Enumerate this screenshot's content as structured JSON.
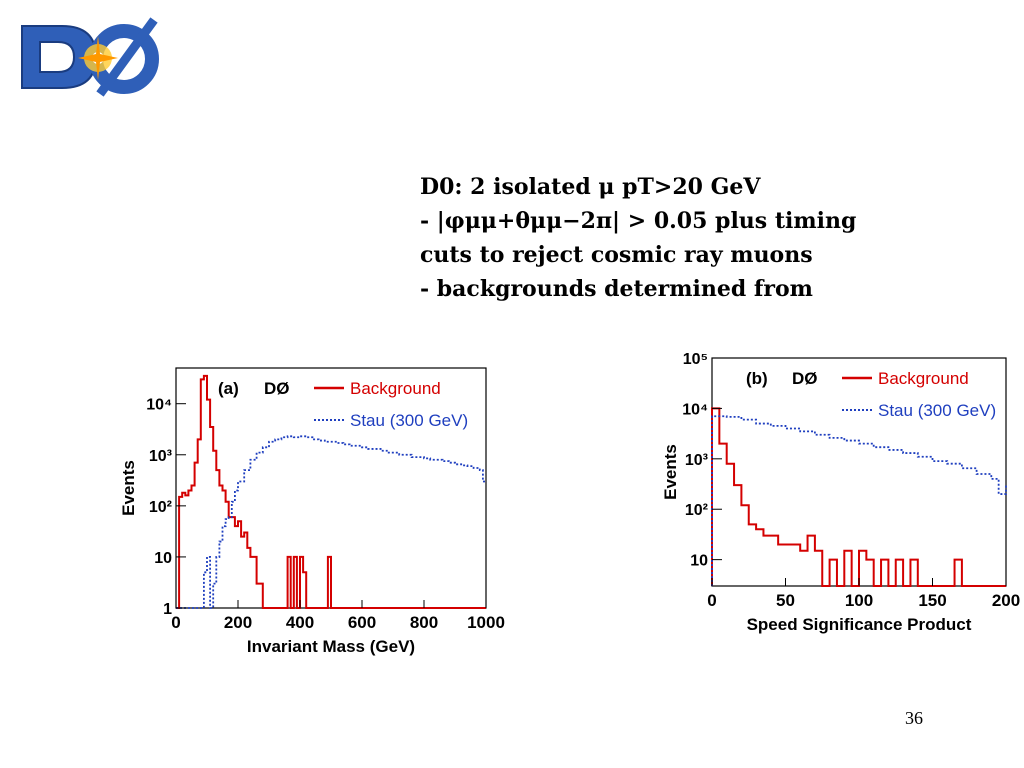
{
  "slide": {
    "lines": [
      "D0: 2 isolated μ pT>20 GeV",
      "- |φμμ+θμμ−2π| > 0.05 plus timing",
      "cuts to reject cosmic ray muons",
      "- backgrounds determined from"
    ],
    "page_number": "36",
    "logo_text": "DØ"
  },
  "colors": {
    "background": "#d40000",
    "stau": "#1f3fbf",
    "logo_blue": "#2f5fb8"
  },
  "chart_data": [
    {
      "type": "line",
      "panel_label": "(a)",
      "experiment_label": "DØ",
      "xlabel": "Invariant Mass (GeV)",
      "ylabel": "Events",
      "xlim": [
        0,
        1000
      ],
      "ylim": [
        1,
        50000
      ],
      "yscale": "log",
      "xticks": [
        0,
        200,
        400,
        600,
        800,
        1000
      ],
      "xtick_labels": [
        "0",
        "200",
        "400",
        "600",
        "800",
        "1000"
      ],
      "yticks": [
        1,
        10,
        100,
        1000,
        10000
      ],
      "ytick_labels": [
        "1",
        "10",
        "10²",
        "10³",
        "10⁴"
      ],
      "legend_position": "top-right",
      "series": [
        {
          "name": "Background",
          "style": "histogram",
          "x": [
            0,
            10,
            20,
            30,
            40,
            50,
            60,
            70,
            80,
            90,
            100,
            110,
            120,
            130,
            140,
            150,
            160,
            170,
            180,
            190,
            200,
            210,
            220,
            230,
            240,
            250,
            260,
            270,
            280,
            290,
            300,
            310,
            320,
            330,
            340,
            350,
            360,
            370,
            380,
            390,
            400,
            410,
            420,
            430,
            440,
            450,
            460,
            470,
            480,
            490,
            500
          ],
          "y": [
            1,
            150,
            180,
            160,
            200,
            250,
            700,
            2000,
            30000,
            35000,
            12000,
            3500,
            1200,
            500,
            250,
            200,
            120,
            60,
            60,
            40,
            50,
            25,
            30,
            15,
            10,
            10,
            3,
            3,
            1,
            1,
            1,
            1,
            1,
            1,
            1,
            1,
            10,
            1,
            10,
            1,
            10,
            5,
            1,
            1,
            1,
            1,
            1,
            1,
            1,
            10,
            1
          ]
        },
        {
          "name": "Stau (300 GeV)",
          "style": "dotted-histogram",
          "x": [
            0,
            50,
            80,
            90,
            100,
            110,
            120,
            130,
            140,
            150,
            160,
            170,
            180,
            190,
            200,
            220,
            240,
            260,
            280,
            300,
            320,
            340,
            360,
            380,
            400,
            420,
            440,
            460,
            480,
            500,
            520,
            540,
            560,
            580,
            600,
            620,
            640,
            660,
            680,
            700,
            720,
            740,
            760,
            780,
            800,
            820,
            840,
            860,
            880,
            900,
            920,
            940,
            960,
            980,
            990
          ],
          "y": [
            1,
            1,
            1,
            5,
            10,
            1,
            3,
            10,
            20,
            40,
            55,
            60,
            120,
            200,
            300,
            500,
            800,
            1100,
            1400,
            1800,
            2000,
            2200,
            2300,
            2200,
            2300,
            2200,
            2000,
            1900,
            1800,
            1800,
            1700,
            1600,
            1500,
            1500,
            1400,
            1300,
            1300,
            1200,
            1100,
            1100,
            1000,
            1000,
            900,
            900,
            850,
            800,
            800,
            750,
            700,
            650,
            620,
            600,
            550,
            500,
            300
          ]
        }
      ]
    },
    {
      "type": "line",
      "panel_label": "(b)",
      "experiment_label": "DØ",
      "xlabel": "Speed Significance Product",
      "ylabel": "Events",
      "xlim": [
        0,
        200
      ],
      "ylim": [
        3,
        100000
      ],
      "yscale": "log",
      "xticks": [
        0,
        50,
        100,
        150,
        200
      ],
      "xtick_labels": [
        "0",
        "50",
        "100",
        "150",
        "200"
      ],
      "yticks": [
        10,
        100,
        1000,
        10000,
        100000
      ],
      "ytick_labels": [
        "10",
        "10²",
        "10³",
        "10⁴",
        "10⁵"
      ],
      "legend_position": "top-right",
      "series": [
        {
          "name": "Background",
          "style": "histogram",
          "x": [
            0,
            5,
            10,
            15,
            20,
            25,
            30,
            35,
            40,
            45,
            50,
            55,
            60,
            65,
            70,
            75,
            80,
            85,
            90,
            95,
            100,
            105,
            110,
            115,
            120,
            125,
            130,
            135,
            140,
            145,
            150,
            155,
            160,
            165,
            170
          ],
          "y": [
            10000,
            2000,
            800,
            300,
            120,
            50,
            40,
            30,
            30,
            20,
            20,
            20,
            15,
            30,
            15,
            2,
            10,
            3,
            15,
            3,
            15,
            10,
            2,
            10,
            3,
            10,
            3,
            10,
            2,
            2,
            2,
            2,
            2,
            10,
            2
          ]
        },
        {
          "name": "Stau (300 GeV)",
          "style": "dotted-histogram",
          "x": [
            0,
            10,
            20,
            30,
            40,
            50,
            60,
            70,
            80,
            90,
            100,
            110,
            120,
            130,
            140,
            150,
            160,
            170,
            180,
            190,
            195,
            200
          ],
          "y": [
            7000,
            6800,
            6000,
            5000,
            4500,
            4000,
            3500,
            3000,
            2600,
            2300,
            2000,
            1700,
            1500,
            1300,
            1100,
            900,
            800,
            650,
            500,
            400,
            200,
            300
          ]
        }
      ]
    }
  ]
}
